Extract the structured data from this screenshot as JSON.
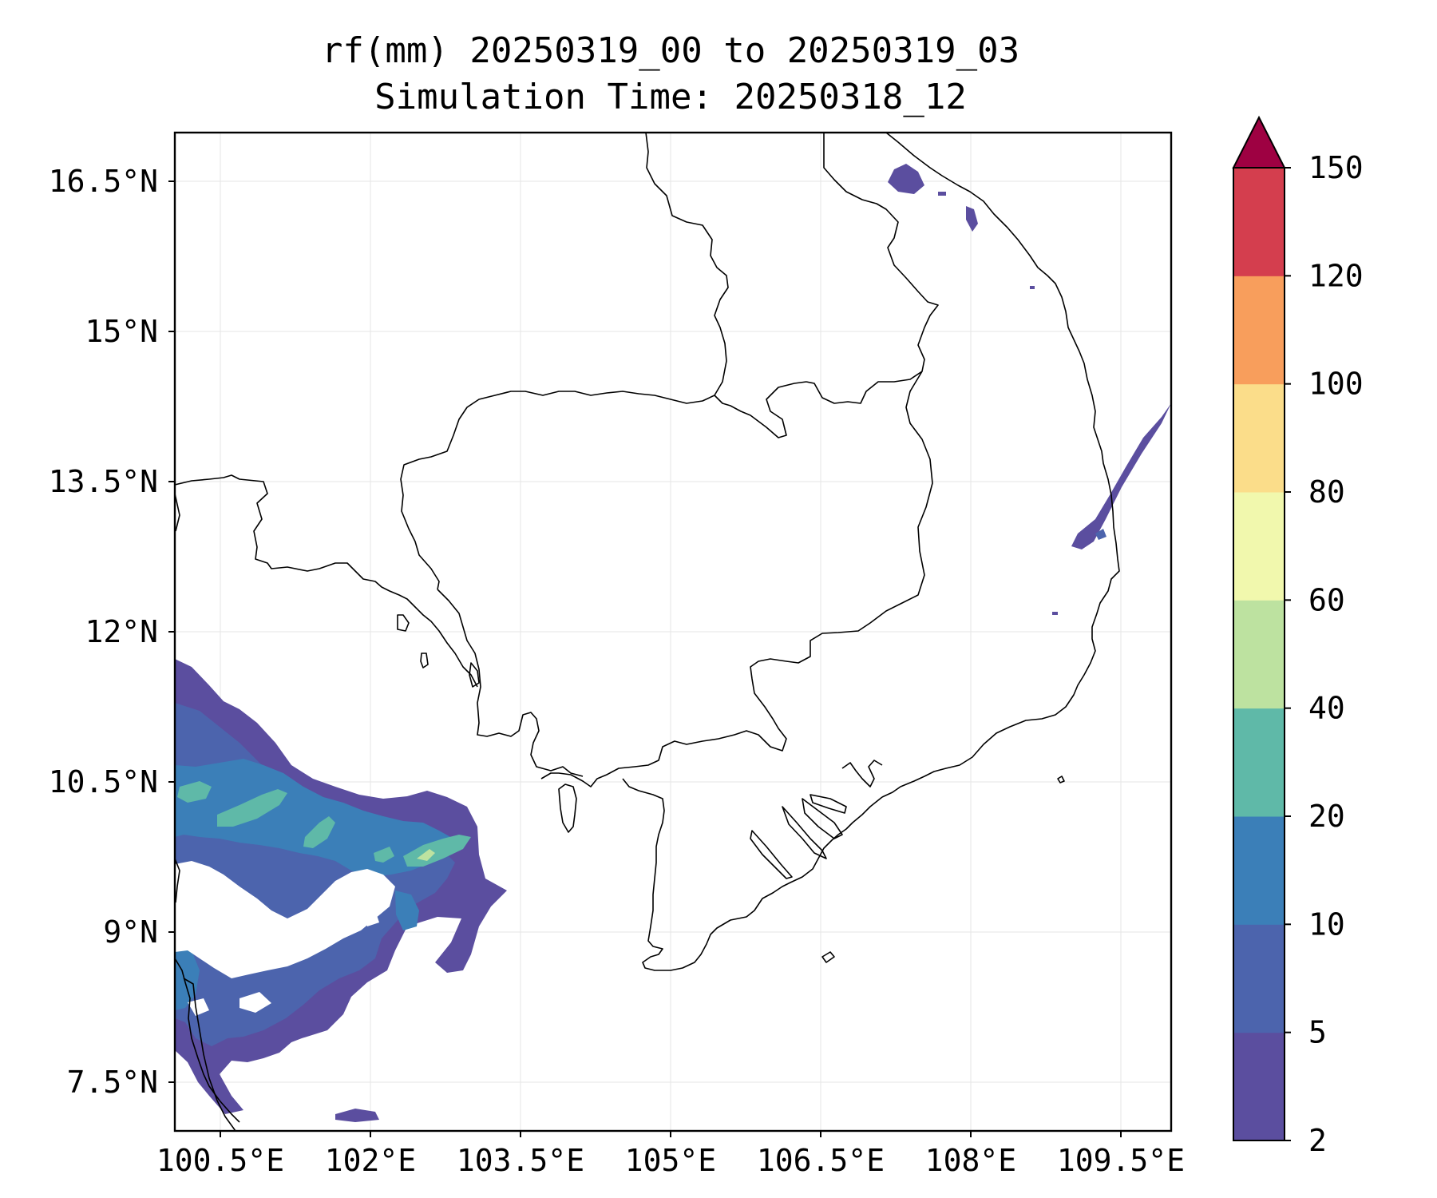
{
  "title": "rf(mm) 20250319_00 to 20250319_03",
  "subtitle": "Simulation Time: 20250318_12",
  "map": {
    "lon_ticks": [
      "100.5°E",
      "102°E",
      "103.5°E",
      "105°E",
      "106.5°E",
      "108°E",
      "109.5°E"
    ],
    "lat_ticks": [
      "16.5°N",
      "15°N",
      "13.5°N",
      "12°N",
      "10.5°N",
      "9°N",
      "7.5°N"
    ],
    "grid": true
  },
  "colorbar": {
    "levels": [
      "2",
      "5",
      "10",
      "20",
      "40",
      "60",
      "80",
      "100",
      "120",
      "150"
    ],
    "colors": [
      "#5b4e9f",
      "#4c64ad",
      "#3b7fb8",
      "#5fb9a8",
      "#bde2a0",
      "#f1f8ad",
      "#fbdd8a",
      "#f89e5c",
      "#d43e4e",
      "#9e0142"
    ],
    "extend": "max"
  }
}
